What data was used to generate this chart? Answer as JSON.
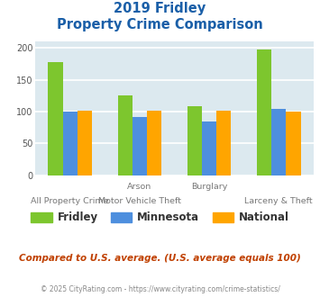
{
  "title_line1": "2019 Fridley",
  "title_line2": "Property Crime Comparison",
  "groups": [
    {
      "label": "All Property Crime",
      "fridley": 178,
      "minnesota": 100,
      "national": 101
    },
    {
      "label": "Arson\nMotor Vehicle Theft",
      "fridley": 125,
      "minnesota": 91,
      "national": 101
    },
    {
      "label": "Burglary",
      "fridley": 109,
      "minnesota": 84,
      "national": 101
    },
    {
      "label": "Larceny & Theft",
      "fridley": 197,
      "minnesota": 104,
      "national": 100
    }
  ],
  "top_labels": [
    "",
    "Arson",
    "Burglary",
    ""
  ],
  "bottom_labels": [
    "All Property Crime",
    "Motor Vehicle Theft",
    "",
    "Larceny & Theft"
  ],
  "color_fridley": "#7dc62e",
  "color_minnesota": "#4e8fde",
  "color_national": "#ffa500",
  "ylim": [
    0,
    210
  ],
  "yticks": [
    0,
    50,
    100,
    150,
    200
  ],
  "plot_bg": "#dce9ef",
  "grid_color": "#ffffff",
  "footnote": "Compared to U.S. average. (U.S. average equals 100)",
  "copyright": "© 2025 CityRating.com - https://www.cityrating.com/crime-statistics/",
  "title_color": "#1a5fa8",
  "footnote_color": "#c04000",
  "copyright_color": "#888888",
  "legend_labels": [
    "Fridley",
    "Minnesota",
    "National"
  ]
}
